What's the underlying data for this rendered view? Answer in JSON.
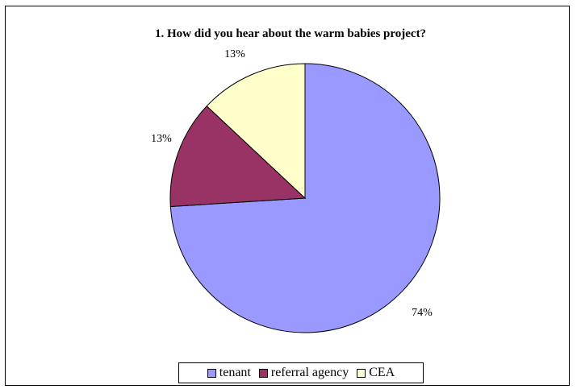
{
  "chart_data": {
    "type": "pie",
    "title": "1. How did you hear about the warm babies project?",
    "slices": [
      {
        "label": "tenant",
        "value": 74,
        "display": "74%",
        "color": "#9999FF"
      },
      {
        "label": "referral agency",
        "value": 13,
        "display": "13%",
        "color": "#993366"
      },
      {
        "label": "CEA",
        "value": 13,
        "display": "13%",
        "color": "#FFFFCC"
      }
    ],
    "legend_position": "bottom",
    "start_angle_deg": 0,
    "direction": "clockwise"
  }
}
